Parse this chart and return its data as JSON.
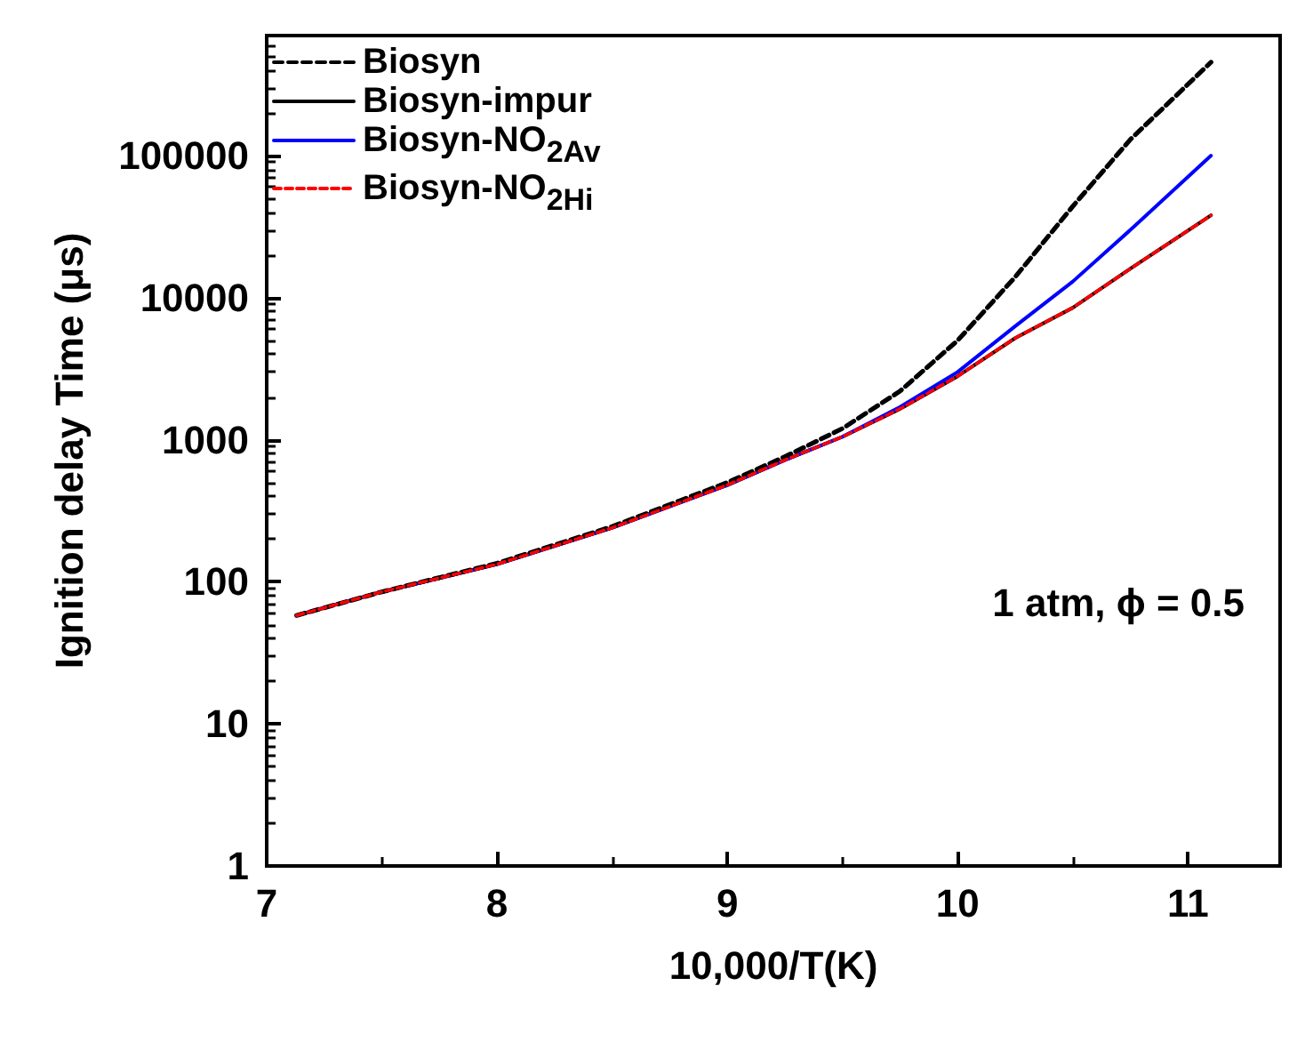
{
  "chart_data": {
    "type": "line",
    "xlabel": "10,000/T(K)",
    "ylabel": "Ignition delay Time (μs)",
    "x": [
      7.13,
      7.5,
      8,
      8.5,
      9,
      9.25,
      9.5,
      9.75,
      10,
      10.25,
      10.5,
      10.75,
      11.1
    ],
    "series": [
      {
        "name": "Biosyn",
        "color": "#000000",
        "line_style": "dashed",
        "values": [
          58,
          85,
          135,
          245,
          500,
          760,
          1200,
          2200,
          5000,
          14000,
          44000,
          130000,
          455000
        ]
      },
      {
        "name": "Biosyn-impur",
        "color": "#000000",
        "line_style": "solid",
        "values": [
          58,
          85,
          133,
          240,
          480,
          720,
          1050,
          1650,
          2800,
          5200,
          8500,
          16000,
          38000
        ]
      },
      {
        "name": "Biosyn-NO$_{2Av}$",
        "color": "#0000ff",
        "line_style": "solid",
        "values": [
          58,
          85,
          133,
          240,
          480,
          720,
          1050,
          1700,
          3000,
          6300,
          13000,
          30000,
          100000
        ]
      },
      {
        "name": "Biosyn-NO$_{2Hi}$",
        "color": "#ff0000",
        "line_style": "dotted",
        "values": [
          58,
          85,
          133,
          240,
          480,
          720,
          1050,
          1650,
          2800,
          5200,
          8500,
          16000,
          38000
        ]
      }
    ],
    "xlim": [
      7,
      11.4
    ],
    "xticks": [
      7,
      8,
      9,
      10,
      11
    ],
    "ylim": [
      1,
      700000
    ],
    "yticks": [
      1,
      10,
      100,
      1000,
      10000,
      100000
    ],
    "log": "y",
    "grid": false,
    "legend": "top left",
    "marker": "none",
    "annotations": [
      "1 atm, ϕ = 0.5"
    ]
  }
}
